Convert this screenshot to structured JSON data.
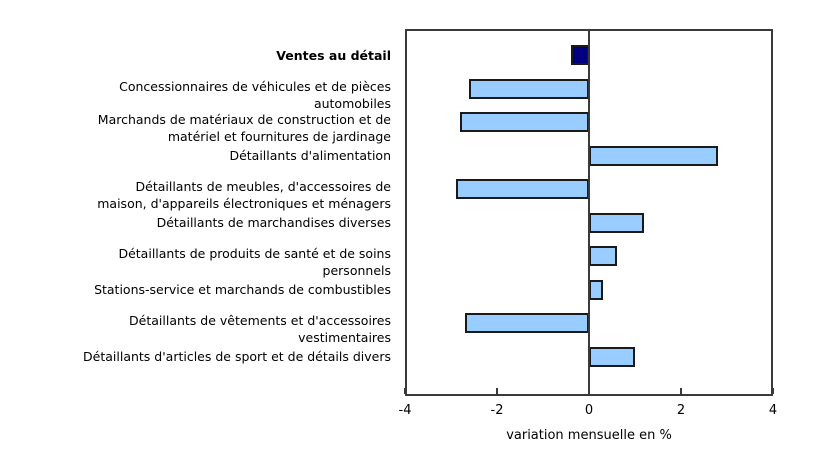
{
  "chart_data": {
    "type": "bar",
    "orientation": "horizontal",
    "title": "",
    "xlabel": "variation mensuelle en %",
    "ylabel": "",
    "xlim": [
      -4,
      4
    ],
    "xticks": [
      -4,
      -2,
      0,
      2,
      4
    ],
    "grid": false,
    "legend": null,
    "categories": [
      {
        "label": [
          "Ventes au détail"
        ],
        "value": -0.4,
        "bold": true,
        "color": "#000080"
      },
      {
        "label": [
          "Concessionnaires de véhicules et de pièces",
          "automobiles"
        ],
        "value": -2.6,
        "bold": false,
        "color": "#99ccff"
      },
      {
        "label": [
          "Marchands de matériaux de construction et de",
          "matériel et fournitures de jardinage"
        ],
        "value": -2.8,
        "bold": false,
        "color": "#99ccff"
      },
      {
        "label": [
          "Détaillants d'alimentation"
        ],
        "value": 2.8,
        "bold": false,
        "color": "#99ccff"
      },
      {
        "label": [
          "Détaillants de meubles, d'accessoires de",
          "maison, d'appareils électroniques et ménagers"
        ],
        "value": -2.9,
        "bold": false,
        "color": "#99ccff"
      },
      {
        "label": [
          "Détaillants de marchandises diverses"
        ],
        "value": 1.2,
        "bold": false,
        "color": "#99ccff"
      },
      {
        "label": [
          "Détaillants de produits de santé et de soins",
          "personnels"
        ],
        "value": 0.6,
        "bold": false,
        "color": "#99ccff"
      },
      {
        "label": [
          "Stations-service et marchands de combustibles"
        ],
        "value": 0.3,
        "bold": false,
        "color": "#99ccff"
      },
      {
        "label": [
          "Détaillants de vêtements et d'accessoires",
          "vestimentaires"
        ],
        "value": -2.7,
        "bold": false,
        "color": "#99ccff"
      },
      {
        "label": [
          "Détaillants d'articles de sport et de détails divers"
        ],
        "value": 1.0,
        "bold": false,
        "color": "#99ccff"
      }
    ]
  }
}
